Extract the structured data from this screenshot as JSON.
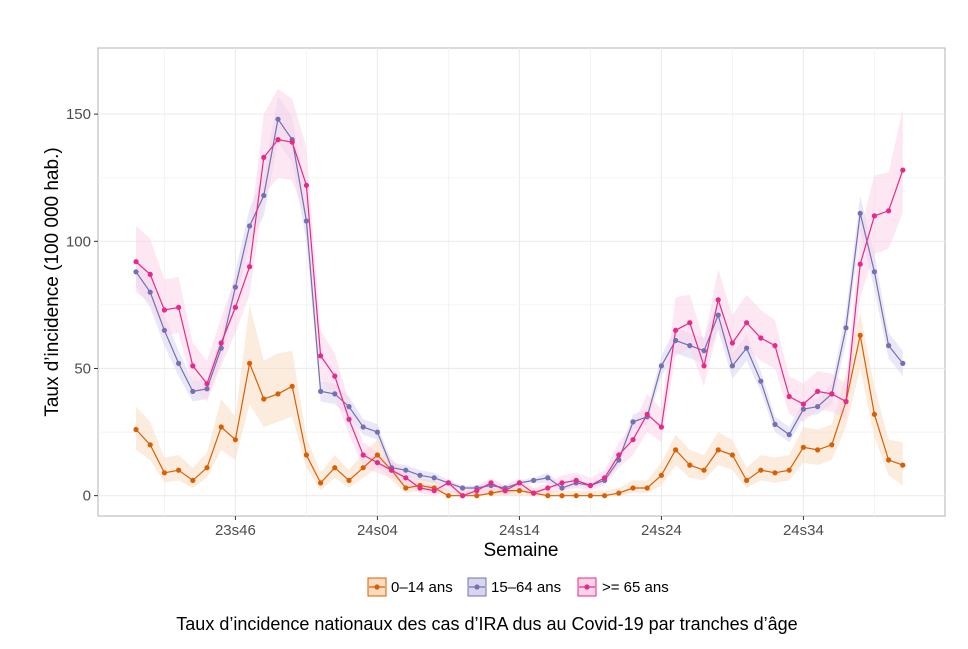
{
  "chart_data": {
    "type": "line",
    "xlabel": "Semaine",
    "ylabel": "Taux d’incidence (100 000 hab.)",
    "caption": "Taux d’incidence nationaux des cas d’IRA dus au Covid-19 par tranches d’âge",
    "x_tick_labels": [
      "23s46",
      "24s04",
      "24s14",
      "24s24",
      "24s34"
    ],
    "y_ticks": [
      0,
      50,
      100,
      150
    ],
    "ylim": [
      -8,
      176
    ],
    "grid": true,
    "legend_position": "bottom",
    "series": [
      {
        "name": "0–14 ans",
        "color": "#d95f02",
        "band_color": "#f9dcc2",
        "values": [
          26,
          20,
          9,
          10,
          6,
          11,
          27,
          22,
          52,
          38,
          40,
          43,
          16,
          5,
          11,
          6,
          11,
          16,
          10,
          3,
          4,
          3,
          0,
          0,
          0,
          1,
          2,
          2,
          1,
          0,
          0,
          0,
          0,
          0,
          1,
          3,
          3,
          8,
          18,
          12,
          10,
          18,
          16,
          6,
          10,
          9,
          10,
          19,
          18,
          20,
          37,
          63,
          32,
          14,
          12
        ],
        "lower": [
          18,
          14,
          5,
          6,
          3,
          7,
          18,
          14,
          36,
          27,
          29,
          31,
          11,
          2,
          7,
          3,
          7,
          11,
          6,
          1,
          2,
          1,
          0,
          0,
          0,
          0,
          0,
          0,
          0,
          0,
          0,
          0,
          0,
          0,
          0,
          1,
          1,
          4,
          12,
          7,
          6,
          12,
          10,
          3,
          6,
          5,
          6,
          13,
          12,
          14,
          27,
          50,
          23,
          8,
          4
        ],
        "upper": [
          35,
          29,
          15,
          16,
          11,
          17,
          38,
          31,
          75,
          53,
          56,
          57,
          23,
          9,
          16,
          10,
          17,
          22,
          15,
          6,
          7,
          6,
          2,
          2,
          2,
          3,
          4,
          4,
          3,
          2,
          2,
          2,
          2,
          2,
          3,
          6,
          6,
          13,
          24,
          18,
          16,
          25,
          22,
          11,
          16,
          15,
          16,
          27,
          26,
          28,
          48,
          72,
          43,
          22,
          21
        ]
      },
      {
        "name": "15–64 ans",
        "color": "#7570b3",
        "band_color": "#d8d6ee",
        "values": [
          88,
          80,
          65,
          52,
          41,
          42,
          58,
          82,
          106,
          118,
          148,
          140,
          108,
          41,
          40,
          35,
          27,
          25,
          11,
          10,
          8,
          7,
          5,
          3,
          3,
          4,
          3,
          5,
          6,
          7,
          3,
          5,
          4,
          6,
          14,
          29,
          31,
          51,
          61,
          59,
          57,
          71,
          51,
          58,
          45,
          28,
          24,
          34,
          35,
          40,
          66,
          111,
          88,
          59,
          52
        ],
        "lower": [
          82,
          74,
          59,
          47,
          37,
          38,
          53,
          76,
          99,
          110,
          139,
          131,
          100,
          37,
          36,
          31,
          24,
          22,
          9,
          8,
          6,
          5,
          4,
          2,
          2,
          3,
          2,
          4,
          5,
          5,
          2,
          4,
          3,
          5,
          12,
          26,
          28,
          47,
          56,
          54,
          52,
          65,
          46,
          53,
          41,
          25,
          21,
          31,
          32,
          36,
          60,
          104,
          81,
          54,
          47
        ],
        "upper": [
          94,
          86,
          71,
          57,
          45,
          46,
          63,
          88,
          113,
          126,
          157,
          149,
          116,
          45,
          44,
          39,
          30,
          28,
          13,
          12,
          10,
          9,
          6,
          4,
          4,
          5,
          4,
          6,
          7,
          9,
          4,
          6,
          5,
          7,
          16,
          32,
          34,
          55,
          66,
          64,
          62,
          77,
          56,
          63,
          49,
          31,
          27,
          37,
          38,
          44,
          72,
          118,
          95,
          64,
          57
        ]
      },
      {
        "name": ">= 65 ans",
        "color": "#e7298a",
        "band_color": "#f9d3e8",
        "values": [
          92,
          87,
          73,
          74,
          51,
          44,
          60,
          74,
          90,
          133,
          140,
          139,
          122,
          55,
          47,
          30,
          16,
          13,
          10,
          7,
          3,
          2,
          5,
          0,
          2,
          5,
          2,
          5,
          1,
          3,
          5,
          6,
          4,
          7,
          16,
          22,
          32,
          27,
          65,
          68,
          51,
          77,
          60,
          68,
          62,
          59,
          39,
          36,
          41,
          40,
          37,
          91,
          110,
          112,
          128
        ],
        "lower": [
          80,
          76,
          63,
          64,
          43,
          37,
          51,
          64,
          79,
          118,
          125,
          124,
          108,
          46,
          39,
          24,
          11,
          9,
          7,
          4,
          1,
          0,
          2,
          0,
          0,
          2,
          0,
          2,
          0,
          1,
          2,
          3,
          2,
          4,
          11,
          16,
          25,
          21,
          55,
          58,
          43,
          66,
          51,
          58,
          53,
          50,
          32,
          29,
          34,
          33,
          30,
          78,
          95,
          97,
          111
        ],
        "upper": [
          106,
          101,
          85,
          86,
          60,
          53,
          70,
          86,
          103,
          150,
          160,
          156,
          137,
          65,
          56,
          37,
          21,
          17,
          14,
          10,
          5,
          4,
          7,
          2,
          4,
          7,
          4,
          7,
          3,
          5,
          8,
          9,
          7,
          10,
          21,
          28,
          40,
          34,
          78,
          79,
          61,
          89,
          71,
          79,
          73,
          69,
          47,
          44,
          49,
          48,
          44,
          104,
          126,
          127,
          152
        ]
      }
    ]
  }
}
